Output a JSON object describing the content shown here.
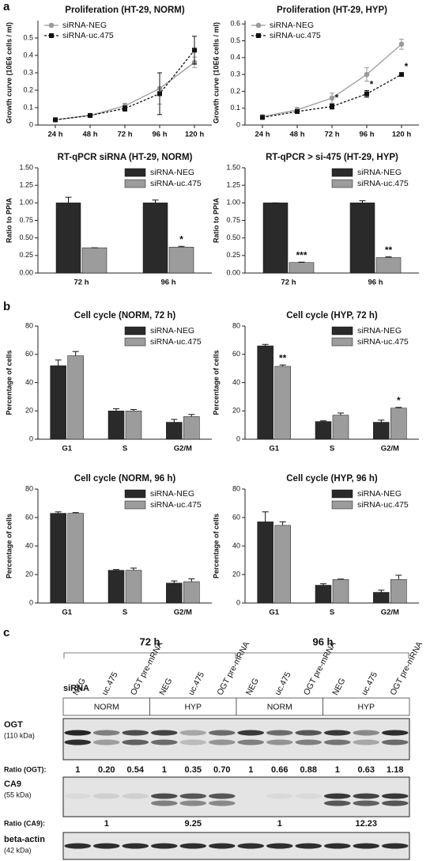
{
  "panel_labels": {
    "a": "a",
    "b": "b",
    "c": "c"
  },
  "chart_data": [
    {
      "type": "line",
      "title": "Proliferation (HT-29, NORM)",
      "ylabel": "Growth curve (10E6 cells / ml)",
      "categories": [
        "24 h",
        "48 h",
        "72 h",
        "96 h",
        "120 h"
      ],
      "ylim": [
        0,
        0.6
      ],
      "yticks": [
        0,
        0.1,
        0.2,
        0.3,
        0.4,
        0.5
      ],
      "legend": "upper left",
      "series": [
        {
          "name": "siRNA-NEG",
          "color": "#9a9a9a",
          "marker": "circle",
          "linestyle": "solid",
          "values": [
            0.03,
            0.055,
            0.11,
            0.21,
            0.36
          ],
          "errors": [
            0.005,
            0.005,
            0.015,
            0.09,
            0.03
          ]
        },
        {
          "name": "siRNA-uc.475",
          "color": "#111111",
          "marker": "square",
          "linestyle": "dashed",
          "values": [
            0.03,
            0.055,
            0.095,
            0.18,
            0.43
          ],
          "errors": [
            0.005,
            0.005,
            0.015,
            0.12,
            0.08
          ]
        }
      ]
    },
    {
      "type": "line",
      "title": "Proliferation (HT-29, HYP)",
      "ylabel": "Growth curve (10E6 cells / ml)",
      "categories": [
        "24 h",
        "48 h",
        "72 h",
        "96 h",
        "120 h"
      ],
      "ylim": [
        0,
        0.62
      ],
      "yticks": [
        0,
        0.1,
        0.2,
        0.3,
        0.4,
        0.5,
        0.6
      ],
      "legend": "upper left",
      "series": [
        {
          "name": "siRNA-NEG",
          "color": "#9a9a9a",
          "marker": "circle",
          "linestyle": "solid",
          "values": [
            0.05,
            0.09,
            0.16,
            0.3,
            0.48
          ],
          "errors": [
            0.01,
            0.015,
            0.03,
            0.04,
            0.03
          ]
        },
        {
          "name": "siRNA-uc.475",
          "color": "#111111",
          "marker": "square",
          "linestyle": "dashed",
          "values": [
            0.045,
            0.08,
            0.11,
            0.185,
            0.3
          ],
          "errors": [
            0.01,
            0.01,
            0.015,
            0.02,
            0.01
          ],
          "significance": [
            null,
            null,
            "*",
            "*",
            "*"
          ]
        }
      ]
    },
    {
      "type": "bar",
      "title": "RT-qPCR siRNA (HT-29, NORM)",
      "ylabel": "Ratio to PPIA",
      "categories": [
        "72 h",
        "96 h"
      ],
      "ylim": [
        0,
        1.5
      ],
      "legend": "upper right",
      "yticks": [
        {
          "value": 0,
          "label": "0.00"
        },
        {
          "value": 0.25,
          "label": "0.25"
        },
        {
          "value": 0.5,
          "label": "0.50"
        },
        {
          "value": 0.75,
          "label": "0.75"
        },
        {
          "value": 1,
          "label": "1.00"
        },
        {
          "value": 1.25,
          "label": "1.25"
        },
        {
          "value": 1.5,
          "label": "1.50"
        }
      ],
      "series": [
        {
          "name": "siRNA-NEG",
          "color": "#2a2a2a",
          "values": [
            1.0,
            1.0
          ],
          "errors": [
            0.08,
            0.04
          ]
        },
        {
          "name": "siRNA-uc.475",
          "color": "#9c9c9c",
          "values": [
            0.36,
            0.37
          ],
          "errors": [
            0,
            0.01
          ],
          "significance": [
            null,
            "*"
          ]
        }
      ]
    },
    {
      "type": "bar",
      "title": "RT-qPCR > si-475 (HT-29, HYP)",
      "ylabel": "Ratio to PPIA",
      "categories": [
        "72 h",
        "96 h"
      ],
      "ylim": [
        0,
        1.5
      ],
      "legend": "upper right",
      "yticks": [
        {
          "value": 0,
          "label": "0.00"
        },
        {
          "value": 0.25,
          "label": "0.25"
        },
        {
          "value": 0.5,
          "label": "0.50"
        },
        {
          "value": 0.75,
          "label": "0.75"
        },
        {
          "value": 1,
          "label": "1.00"
        },
        {
          "value": 1.25,
          "label": "1.25"
        },
        {
          "value": 1.5,
          "label": "1.50"
        }
      ],
      "series": [
        {
          "name": "siRNA-NEG",
          "color": "#2a2a2a",
          "values": [
            1.0,
            1.0
          ],
          "errors": [
            0,
            0.03
          ]
        },
        {
          "name": "siRNA-uc.475",
          "color": "#9c9c9c",
          "values": [
            0.15,
            0.22
          ],
          "errors": [
            0.005,
            0.01
          ],
          "significance": [
            "***",
            "**"
          ]
        }
      ]
    },
    {
      "type": "bar",
      "title": "Cell cycle (NORM, 72 h)",
      "ylabel": "Percentage of cells",
      "categories": [
        "G1",
        "S",
        "G2/M"
      ],
      "ylim": [
        0,
        80
      ],
      "yticks": [
        0,
        20,
        40,
        60,
        80
      ],
      "legend": "upper right",
      "series": [
        {
          "name": "siRNA-NEG",
          "color": "#2a2a2a",
          "values": [
            52,
            20,
            12
          ],
          "errors": [
            4,
            1.5,
            2
          ]
        },
        {
          "name": "siRNA-uc.475",
          "color": "#9c9c9c",
          "values": [
            59,
            20,
            16
          ],
          "errors": [
            3,
            1,
            1.5
          ]
        }
      ]
    },
    {
      "type": "bar",
      "title": "Cell cycle (HYP, 72 h)",
      "ylabel": "Percentage of cells",
      "categories": [
        "G1",
        "S",
        "G2/M"
      ],
      "ylim": [
        0,
        80
      ],
      "yticks": [
        0,
        20,
        40,
        60,
        80
      ],
      "legend": "upper right",
      "series": [
        {
          "name": "siRNA-NEG",
          "color": "#2a2a2a",
          "values": [
            66,
            12.5,
            12
          ],
          "errors": [
            1,
            0.5,
            1.5
          ]
        },
        {
          "name": "siRNA-uc.475",
          "color": "#9c9c9c",
          "values": [
            51.5,
            17,
            22
          ],
          "errors": [
            1,
            1.5,
            0.5
          ],
          "significance": [
            "**",
            null,
            "*"
          ]
        }
      ]
    },
    {
      "type": "bar",
      "title": "Cell cycle (NORM, 96 h)",
      "ylabel": "Percentage of cells",
      "categories": [
        "G1",
        "S",
        "G2/M"
      ],
      "ylim": [
        0,
        80
      ],
      "yticks": [
        0,
        20,
        40,
        60,
        80
      ],
      "legend": "upper right",
      "series": [
        {
          "name": "siRNA-NEG",
          "color": "#2a2a2a",
          "values": [
            63,
            23,
            14
          ],
          "errors": [
            1,
            0.5,
            1.5
          ]
        },
        {
          "name": "siRNA-uc.475",
          "color": "#9c9c9c",
          "values": [
            63,
            23,
            15
          ],
          "errors": [
            0.5,
            1.5,
            2
          ]
        }
      ]
    },
    {
      "type": "bar",
      "title": "Cell cycle (HYP, 96 h)",
      "ylabel": "Percentage of cells",
      "categories": [
        "G1",
        "S",
        "G2/M"
      ],
      "ylim": [
        0,
        80
      ],
      "yticks": [
        0,
        20,
        40,
        60,
        80
      ],
      "legend": "upper right",
      "series": [
        {
          "name": "siRNA-NEG",
          "color": "#2a2a2a",
          "values": [
            57,
            12.5,
            7.5
          ],
          "errors": [
            7,
            1,
            1.5
          ]
        },
        {
          "name": "siRNA-uc.475",
          "color": "#9c9c9c",
          "values": [
            54.5,
            16.5,
            16.5
          ],
          "errors": [
            2.5,
            0.3,
            3
          ]
        }
      ]
    }
  ],
  "blot": {
    "time_labels": [
      "72 h",
      "96 h"
    ],
    "sirna_label": "siRNA",
    "lanes": [
      "NEG",
      "uc.475",
      "OGT pre-mRNA",
      "NEG",
      "uc.475",
      "OGT pre-mRNA",
      "NEG",
      "uc.475",
      "OGT pre-mRNA",
      "NEG",
      "uc.475",
      "OGT pre-mRNA"
    ],
    "conditions": [
      "NORM",
      "HYP",
      "NORM",
      "HYP"
    ],
    "ogt": {
      "name": "OGT",
      "size": "(110 kDa)"
    },
    "ratio_ogt": {
      "label": "Ratio (OGT):",
      "values": [
        "1",
        "0.20",
        "0.54",
        "1",
        "0.35",
        "0.70",
        "1",
        "0.66",
        "0.88",
        "1",
        "0.63",
        "1.18"
      ]
    },
    "ca9": {
      "name": "CA9",
      "size": "(55 kDa)"
    },
    "ratio_ca9": {
      "label": "Ratio (CA9):",
      "values": [
        "1",
        "9.25",
        "1",
        "12.23"
      ]
    },
    "actin": {
      "name": "beta-actin",
      "size": "(42 kDa)"
    }
  }
}
